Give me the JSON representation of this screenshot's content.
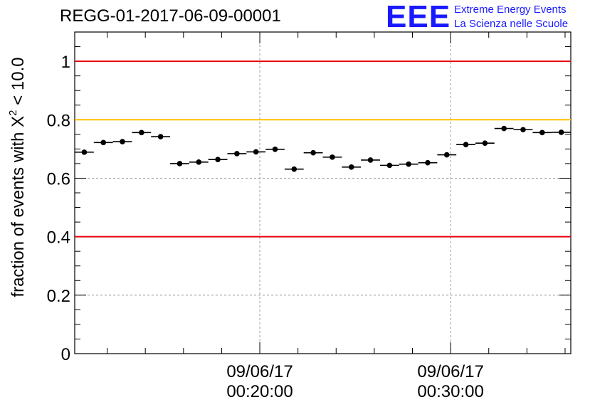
{
  "header": {
    "run_title": "REGG-01-2017-06-09-00001",
    "logo_mark": "EEE",
    "logo_line1": "Extreme Energy Events",
    "logo_line2": "La Scienza nelle Scuole"
  },
  "colors": {
    "limit_lines": "#e8000b",
    "reference_line": "#ffc000",
    "markers": "#000000",
    "grid": "#9a9a9a",
    "logo": "#1a1aff"
  },
  "chart_data": {
    "type": "scatter",
    "title": "",
    "xlabel": "",
    "ylabel": "fraction of events with X² < 10.0",
    "ylim": [
      0,
      1.1
    ],
    "y_ticks": [
      "0",
      "0.2",
      "0.4",
      "0.6",
      "0.8",
      "1"
    ],
    "x_ticks": [
      {
        "date": "09/06/17",
        "time": "00:20:00"
      },
      {
        "date": "09/06/17",
        "time": "00:30:00"
      }
    ],
    "x_minor_tick_count": 26,
    "grid": true,
    "horizontal_lines": [
      {
        "y": 1.0,
        "color": "red"
      },
      {
        "y": 0.8,
        "color": "orange"
      },
      {
        "y": 0.4,
        "color": "red"
      }
    ],
    "x_unit": "minutes after 00:00:00, 09/06/17",
    "x_half_bin": 0.5,
    "points": [
      {
        "x": 10.8,
        "y": 0.689
      },
      {
        "x": 11.8,
        "y": 0.722
      },
      {
        "x": 12.8,
        "y": 0.725
      },
      {
        "x": 13.8,
        "y": 0.756
      },
      {
        "x": 14.8,
        "y": 0.742
      },
      {
        "x": 15.8,
        "y": 0.65
      },
      {
        "x": 16.8,
        "y": 0.655
      },
      {
        "x": 17.8,
        "y": 0.664
      },
      {
        "x": 18.8,
        "y": 0.684
      },
      {
        "x": 19.8,
        "y": 0.69
      },
      {
        "x": 20.8,
        "y": 0.699
      },
      {
        "x": 21.8,
        "y": 0.631
      },
      {
        "x": 22.8,
        "y": 0.687
      },
      {
        "x": 23.8,
        "y": 0.672
      },
      {
        "x": 24.8,
        "y": 0.638
      },
      {
        "x": 25.8,
        "y": 0.662
      },
      {
        "x": 26.8,
        "y": 0.644
      },
      {
        "x": 27.8,
        "y": 0.648
      },
      {
        "x": 28.8,
        "y": 0.653
      },
      {
        "x": 29.8,
        "y": 0.68
      },
      {
        "x": 30.8,
        "y": 0.715
      },
      {
        "x": 31.8,
        "y": 0.72
      },
      {
        "x": 32.8,
        "y": 0.77
      },
      {
        "x": 33.8,
        "y": 0.766
      },
      {
        "x": 34.8,
        "y": 0.756
      },
      {
        "x": 35.8,
        "y": 0.757
      }
    ]
  }
}
